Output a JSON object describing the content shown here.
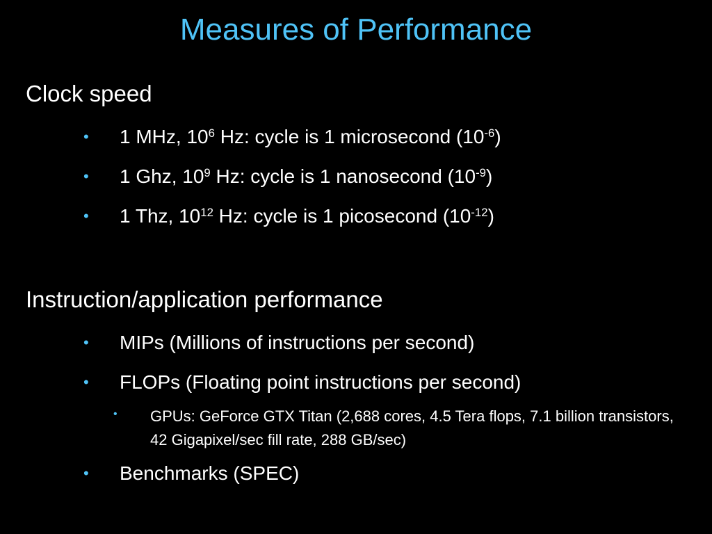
{
  "slide": {
    "title": "Measures of Performance",
    "accent_color": "#4fc3f7",
    "bullet_glyph": "•"
  },
  "clock": {
    "heading": "Clock speed",
    "items": [
      {
        "pre": "1 MHz, 10",
        "exp": "6",
        "mid": " Hz: cycle is 1 microsecond (10",
        "exp2": "-6",
        "post": ")"
      },
      {
        "pre": "1 Ghz,  10",
        "exp": "9",
        "mid": "  Hz: cycle is 1 nanosecond (10",
        "exp2": "-9",
        "post": ")"
      },
      {
        "pre": "1 Thz,  10",
        "exp": "12",
        "mid": " Hz: cycle is 1 picosecond (10",
        "exp2": "-12",
        "post": ")"
      }
    ]
  },
  "instruction": {
    "heading": "Instruction/application performance",
    "items": [
      "MIPs (Millions of instructions per second)",
      "FLOPs (Floating point instructions per second)",
      "Benchmarks (SPEC)"
    ],
    "sub_item": "GPUs: GeForce GTX Titan (2,688 cores, 4.5 Tera flops, 7.1 billion transistors, 42 Gigapixel/sec fill rate, 288 GB/sec)"
  }
}
